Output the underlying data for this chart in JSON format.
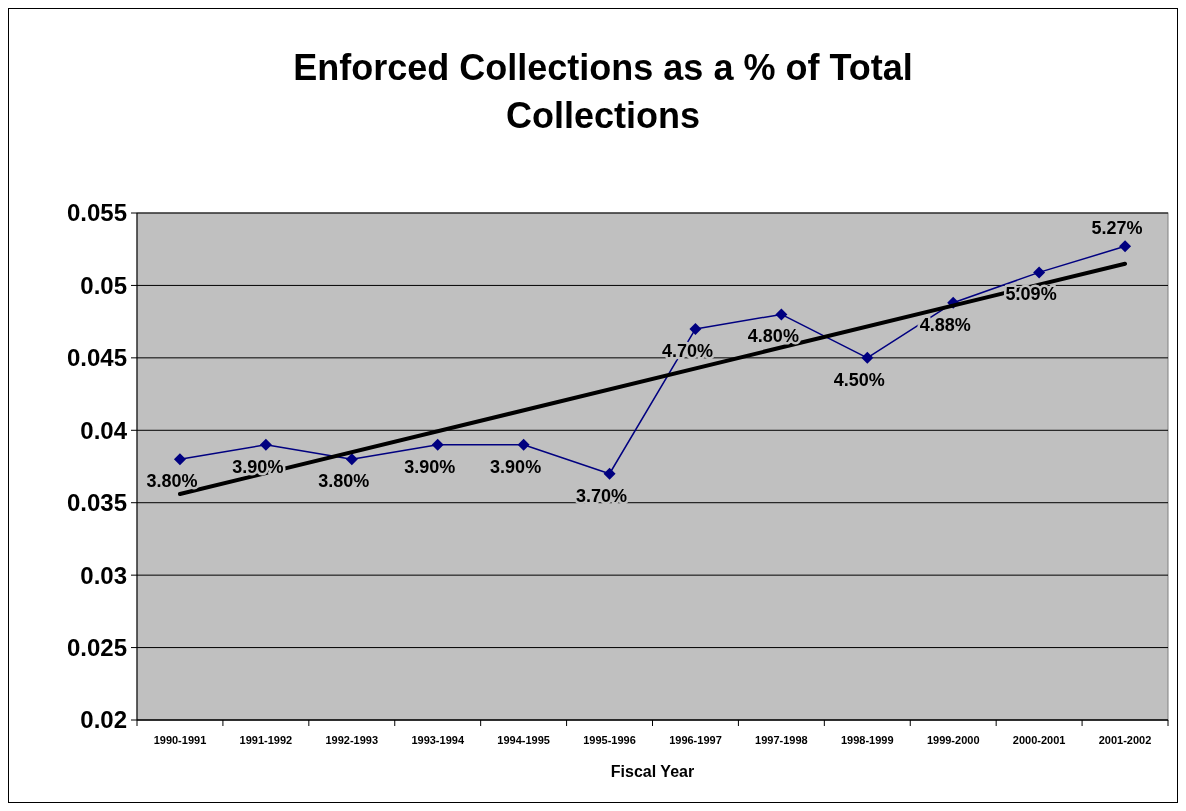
{
  "chart_data": {
    "type": "line",
    "title": "Enforced Collections as a % of Total Collections",
    "xlabel": "Fiscal Year",
    "categories": [
      "1990-1991",
      "1991-1992",
      "1992-1993",
      "1993-1994",
      "1994-1995",
      "1995-1996",
      "1996-1997",
      "1997-1998",
      "1998-1999",
      "1999-2000",
      "2000-2001",
      "2001-2002"
    ],
    "series": [
      {
        "color": "#000080",
        "marker": "diamond",
        "values": [
          0.038,
          0.039,
          0.038,
          0.039,
          0.039,
          0.037,
          0.047,
          0.048,
          0.045,
          0.0488,
          0.0509,
          0.0527
        ],
        "value_labels": [
          "3.80%",
          "3.90%",
          "3.80%",
          "3.90%",
          "3.90%",
          "3.70%",
          "4.70%",
          "4.80%",
          "4.50%",
          "4.88%",
          "5.09%",
          "5.27%"
        ]
      },
      {
        "type": "line",
        "color": "#000000",
        "marker": "none",
        "x": [
          "1990-1991",
          "2001-2002"
        ],
        "values": [
          0.0356,
          0.0515
        ]
      }
    ],
    "ylim": [
      0.02,
      0.055
    ],
    "yticks": [
      0.02,
      0.025,
      0.03,
      0.035,
      0.04,
      0.045,
      0.05,
      0.055
    ],
    "grid": "y"
  }
}
